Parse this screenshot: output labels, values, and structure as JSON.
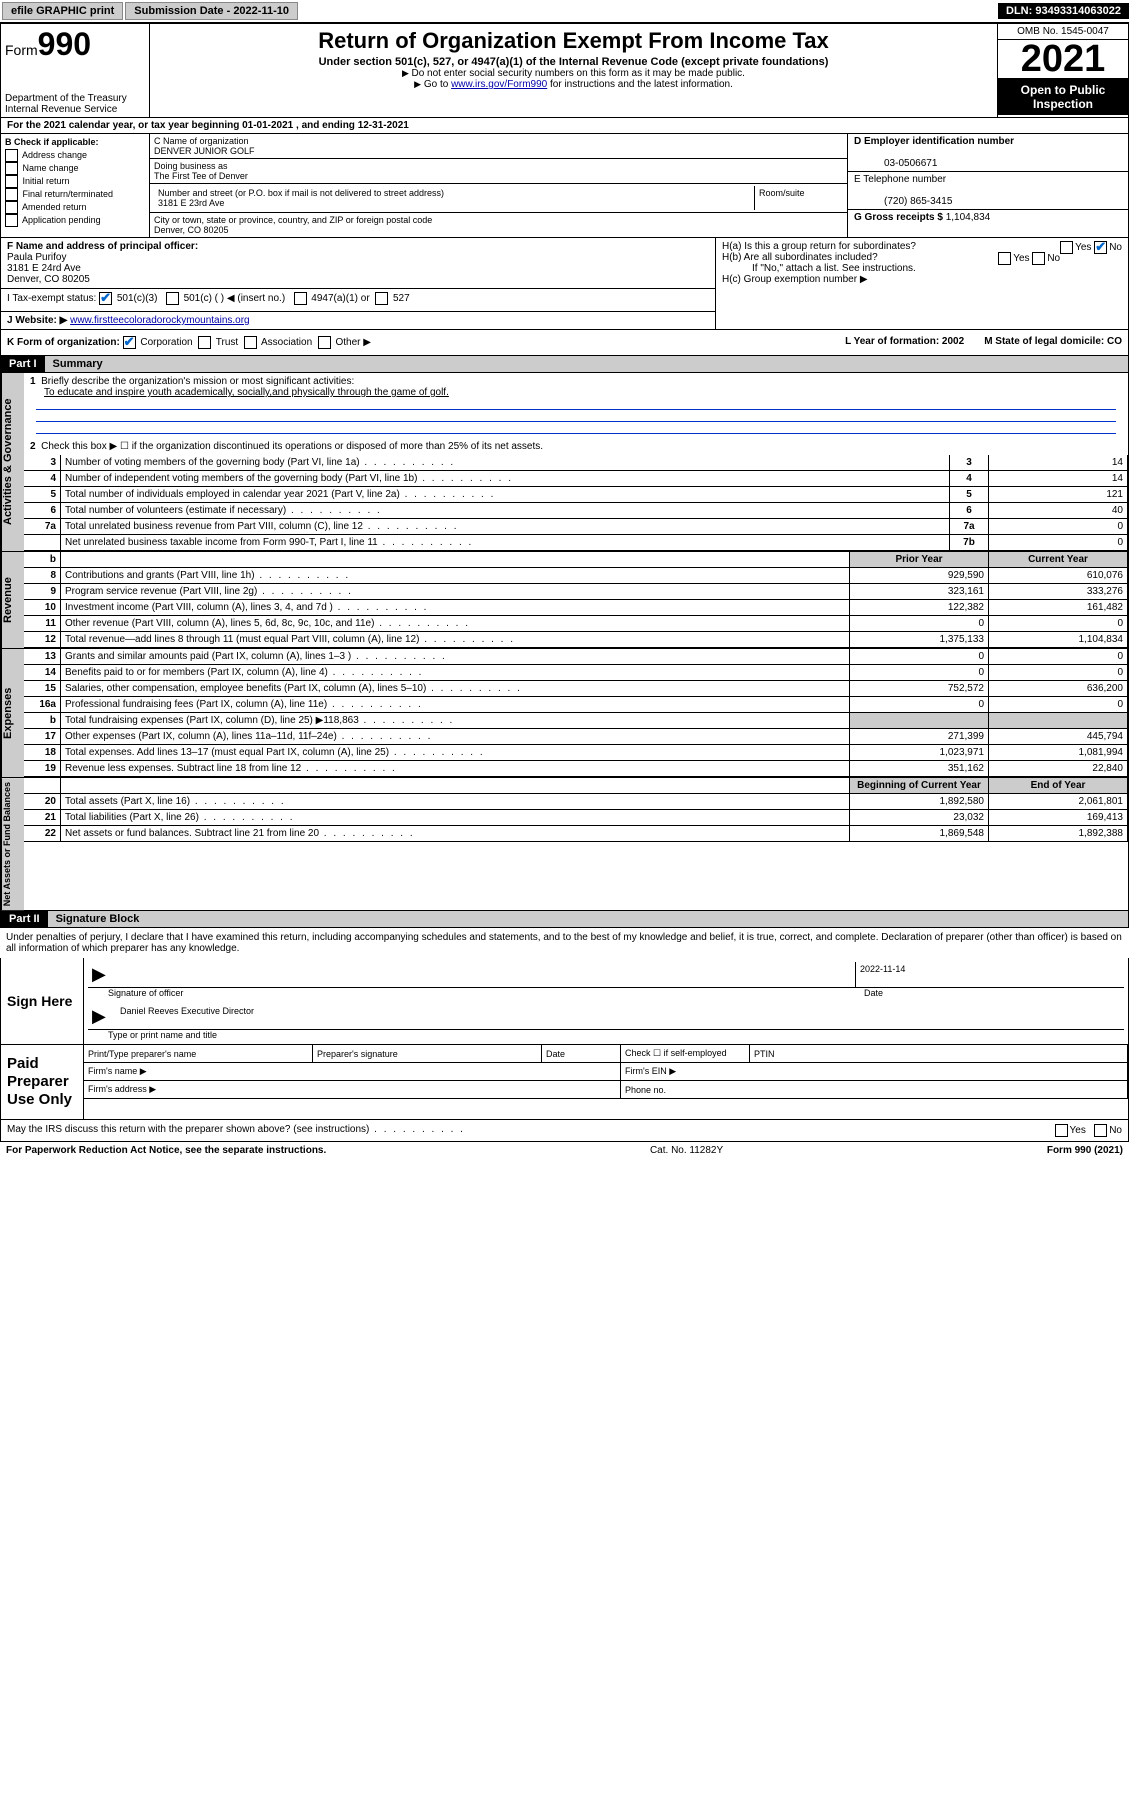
{
  "topbar": {
    "efile": "efile GRAPHIC print",
    "subdate_label": "Submission Date - 2022-11-10",
    "dln": "DLN: 93493314063022"
  },
  "header": {
    "form_prefix": "Form",
    "form_num": "990",
    "dept": "Department of the Treasury",
    "irs": "Internal Revenue Service",
    "title": "Return of Organization Exempt From Income Tax",
    "subtitle": "Under section 501(c), 527, or 4947(a)(1) of the Internal Revenue Code (except private foundations)",
    "note1": "Do not enter social security numbers on this form as it may be made public.",
    "note2_pre": "Go to ",
    "note2_link": "www.irs.gov/Form990",
    "note2_post": " for instructions and the latest information.",
    "omb": "OMB No. 1545-0047",
    "year": "2021",
    "open": "Open to Public Inspection"
  },
  "a": {
    "text": "For the 2021 calendar year, or tax year beginning 01-01-2021   , and ending 12-31-2021"
  },
  "b": {
    "label": "B Check if applicable:",
    "items": [
      "Address change",
      "Name change",
      "Initial return",
      "Final return/terminated",
      "Amended return",
      "Application pending"
    ]
  },
  "c": {
    "name_label": "C Name of organization",
    "name": "DENVER JUNIOR GOLF",
    "dba_label": "Doing business as",
    "dba": "The First Tee of Denver",
    "street_label": "Number and street (or P.O. box if mail is not delivered to street address)",
    "room_label": "Room/suite",
    "street": "3181 E 23rd Ave",
    "city_label": "City or town, state or province, country, and ZIP or foreign postal code",
    "city": "Denver, CO  80205"
  },
  "d": {
    "ein_label": "D Employer identification number",
    "ein": "03-0506671",
    "phone_label": "E Telephone number",
    "phone": "(720) 865-3415",
    "gross_label": "G Gross receipts $",
    "gross": "1,104,834"
  },
  "f": {
    "label": "F  Name and address of principal officer:",
    "name": "Paula Purifoy",
    "addr1": "3181 E 24rd Ave",
    "addr2": "Denver, CO  80205"
  },
  "h": {
    "a_label": "H(a)  Is this a group return for subordinates?",
    "b_label": "H(b)  Are all subordinates included?",
    "b_note": "If \"No,\" attach a list. See instructions.",
    "c_label": "H(c)  Group exemption number ▶"
  },
  "i": {
    "label": "I     Tax-exempt status:",
    "c3": "501(c)(3)",
    "c": "501(c) (  ) ◀ (insert no.)",
    "a1": "4947(a)(1) or",
    "s527": "527"
  },
  "j": {
    "label": "J    Website: ▶",
    "url": "www.firstteecoloradorockymountains.org"
  },
  "k": {
    "label": "K Form of organization:",
    "opts": [
      "Corporation",
      "Trust",
      "Association",
      "Other ▶"
    ],
    "l_label": "L Year of formation: 2002",
    "m_label": "M State of legal domicile: CO"
  },
  "part1": {
    "header": "Part I",
    "title": "Summary",
    "q1": "Briefly describe the organization's mission or most significant activities:",
    "mission": "To educate and inspire youth academically, socially,and physically through the game of golf.",
    "q2": "Check this box ▶ ☐  if the organization discontinued its operations or disposed of more than 25% of its net assets.",
    "rows_gov": [
      {
        "n": "3",
        "d": "Number of voting members of the governing body (Part VI, line 1a)",
        "c": "3",
        "v": "14"
      },
      {
        "n": "4",
        "d": "Number of independent voting members of the governing body (Part VI, line 1b)",
        "c": "4",
        "v": "14"
      },
      {
        "n": "5",
        "d": "Total number of individuals employed in calendar year 2021 (Part V, line 2a)",
        "c": "5",
        "v": "121"
      },
      {
        "n": "6",
        "d": "Total number of volunteers (estimate if necessary)",
        "c": "6",
        "v": "40"
      },
      {
        "n": "7a",
        "d": "Total unrelated business revenue from Part VIII, column (C), line 12",
        "c": "7a",
        "v": "0"
      },
      {
        "n": "",
        "d": "Net unrelated business taxable income from Form 990-T, Part I, line 11",
        "c": "7b",
        "v": "0"
      }
    ],
    "yearhead_b": "b",
    "prior": "Prior Year",
    "current": "Current Year",
    "rev": [
      {
        "n": "8",
        "d": "Contributions and grants (Part VIII, line 1h)",
        "p": "929,590",
        "c": "610,076"
      },
      {
        "n": "9",
        "d": "Program service revenue (Part VIII, line 2g)",
        "p": "323,161",
        "c": "333,276"
      },
      {
        "n": "10",
        "d": "Investment income (Part VIII, column (A), lines 3, 4, and 7d )",
        "p": "122,382",
        "c": "161,482"
      },
      {
        "n": "11",
        "d": "Other revenue (Part VIII, column (A), lines 5, 6d, 8c, 9c, 10c, and 11e)",
        "p": "0",
        "c": "0"
      },
      {
        "n": "12",
        "d": "Total revenue—add lines 8 through 11 (must equal Part VIII, column (A), line 12)",
        "p": "1,375,133",
        "c": "1,104,834"
      }
    ],
    "exp": [
      {
        "n": "13",
        "d": "Grants and similar amounts paid (Part IX, column (A), lines 1–3 )",
        "p": "0",
        "c": "0"
      },
      {
        "n": "14",
        "d": "Benefits paid to or for members (Part IX, column (A), line 4)",
        "p": "0",
        "c": "0"
      },
      {
        "n": "15",
        "d": "Salaries, other compensation, employee benefits (Part IX, column (A), lines 5–10)",
        "p": "752,572",
        "c": "636,200"
      },
      {
        "n": "16a",
        "d": "Professional fundraising fees (Part IX, column (A), line 11e)",
        "p": "0",
        "c": "0"
      },
      {
        "n": "b",
        "d": "Total fundraising expenses (Part IX, column (D), line 25) ▶118,863",
        "p": "",
        "c": "",
        "blank": true
      },
      {
        "n": "17",
        "d": "Other expenses (Part IX, column (A), lines 11a–11d, 11f–24e)",
        "p": "271,399",
        "c": "445,794"
      },
      {
        "n": "18",
        "d": "Total expenses. Add lines 13–17 (must equal Part IX, column (A), line 25)",
        "p": "1,023,971",
        "c": "1,081,994"
      },
      {
        "n": "19",
        "d": "Revenue less expenses. Subtract line 18 from line 12",
        "p": "351,162",
        "c": "22,840"
      }
    ],
    "boy": "Beginning of Current Year",
    "eoy": "End of Year",
    "net": [
      {
        "n": "20",
        "d": "Total assets (Part X, line 16)",
        "p": "1,892,580",
        "c": "2,061,801"
      },
      {
        "n": "21",
        "d": "Total liabilities (Part X, line 26)",
        "p": "23,032",
        "c": "169,413"
      },
      {
        "n": "22",
        "d": "Net assets or fund balances. Subtract line 21 from line 20",
        "p": "1,869,548",
        "c": "1,892,388"
      }
    ],
    "vlab_gov": "Activities & Governance",
    "vlab_rev": "Revenue",
    "vlab_exp": "Expenses",
    "vlab_net": "Net Assets or Fund Balances"
  },
  "part2": {
    "header": "Part II",
    "title": "Signature Block",
    "decl": "Under penalties of perjury, I declare that I have examined this return, including accompanying schedules and statements, and to the best of my knowledge and belief, it is true, correct, and complete. Declaration of preparer (other than officer) is based on all information of which preparer has any knowledge.",
    "sign_here": "Sign Here",
    "sig_officer": "Signature of officer",
    "date": "Date",
    "sig_date": "2022-11-14",
    "name_title": "Daniel Reeves  Executive Director",
    "type_name": "Type or print name and title",
    "paid": "Paid Preparer Use Only",
    "pt_name": "Print/Type preparer's name",
    "pt_sig": "Preparer's signature",
    "pt_date": "Date",
    "pt_check": "Check ☐ if self-employed",
    "ptin": "PTIN",
    "firm_name": "Firm's name   ▶",
    "firm_ein": "Firm's EIN ▶",
    "firm_addr": "Firm's address ▶",
    "phone": "Phone no.",
    "discuss": "May the IRS discuss this return with the preparer shown above? (see instructions)",
    "yes": "Yes",
    "no": "No"
  },
  "footer": {
    "pra": "For Paperwork Reduction Act Notice, see the separate instructions.",
    "cat": "Cat. No. 11282Y",
    "form": "Form 990 (2021)"
  }
}
